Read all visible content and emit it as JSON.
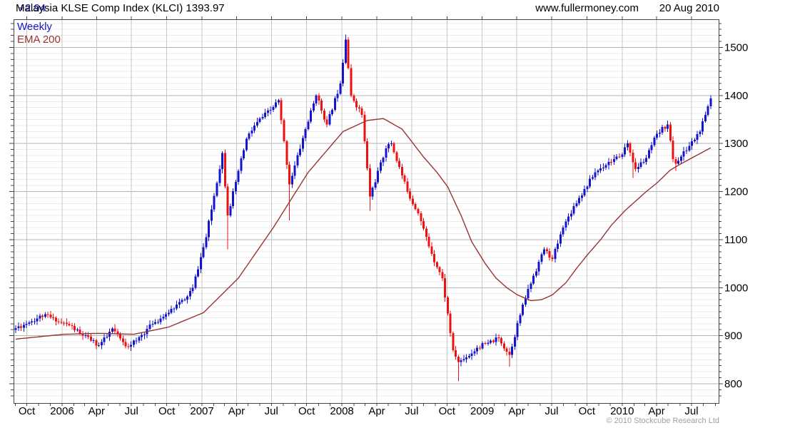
{
  "header": {
    "title": "Malaysia KLSE Comp Index (KLCI) 1393.97",
    "change": "+2.94",
    "site": "www.fullermoney.com",
    "date": "20 Aug 2010"
  },
  "legend": {
    "series": "Weekly",
    "ema": "EMA 200"
  },
  "footer": {
    "copyright": "© 2010 Stockcube Research Ltd"
  },
  "colors": {
    "up_candle": "#1414cd",
    "down_candle": "#ee1111",
    "ema_line": "#993333",
    "change_text": "#1414cd",
    "legend_series_text": "#1414cd",
    "legend_ema_text": "#993333",
    "title_text": "#000000",
    "axis_text": "#000000",
    "copyright_text": "#a0a0a0",
    "grid_minor": "#ebebeb",
    "grid_major": "#b3b3b3",
    "grid_vertical": "#c6c6c6",
    "border": "#444444",
    "background": "#ffffff"
  },
  "chart_data": {
    "type": "candlestick",
    "title": "Malaysia KLSE Comp Index (KLCI)",
    "interval": "weekly",
    "last_close": 1393.97,
    "last_change": 2.94,
    "legend": [
      "Weekly",
      "EMA 200"
    ],
    "start_date": "2005-09-02",
    "weeks": 260,
    "ylim": [
      763,
      1558
    ],
    "y_major_ticks": [
      800,
      900,
      1000,
      1100,
      1200,
      1300,
      1400,
      1500
    ],
    "y_minor_step": 12.5,
    "grid": true,
    "x_axis": [
      {
        "label": "Oct",
        "date": "2005-10-01"
      },
      {
        "label": "2006",
        "date": "2006-01-01"
      },
      {
        "label": "Apr",
        "date": "2006-04-01"
      },
      {
        "label": "Jul",
        "date": "2006-07-01"
      },
      {
        "label": "Oct",
        "date": "2006-10-01"
      },
      {
        "label": "2007",
        "date": "2007-01-01"
      },
      {
        "label": "Apr",
        "date": "2007-04-01"
      },
      {
        "label": "Jul",
        "date": "2007-07-01"
      },
      {
        "label": "Oct",
        "date": "2007-10-01"
      },
      {
        "label": "2008",
        "date": "2008-01-01"
      },
      {
        "label": "Apr",
        "date": "2008-04-01"
      },
      {
        "label": "Jul",
        "date": "2008-07-01"
      },
      {
        "label": "Oct",
        "date": "2008-10-01"
      },
      {
        "label": "2009",
        "date": "2009-01-01"
      },
      {
        "label": "Apr",
        "date": "2009-04-01"
      },
      {
        "label": "Jul",
        "date": "2009-07-01"
      },
      {
        "label": "Oct",
        "date": "2009-10-01"
      },
      {
        "label": "2010",
        "date": "2010-01-01"
      },
      {
        "label": "Apr",
        "date": "2010-04-01"
      },
      {
        "label": "Jul",
        "date": "2010-07-01"
      }
    ],
    "close_anchors": [
      [
        0,
        916
      ],
      [
        5,
        928
      ],
      [
        11,
        945
      ],
      [
        15,
        930
      ],
      [
        20,
        922
      ],
      [
        24,
        905
      ],
      [
        28,
        890
      ],
      [
        31,
        880
      ],
      [
        34,
        898
      ],
      [
        36,
        915
      ],
      [
        41,
        878
      ],
      [
        45,
        890
      ],
      [
        51,
        925
      ],
      [
        56,
        945
      ],
      [
        60,
        965
      ],
      [
        63,
        975
      ],
      [
        66,
        1000
      ],
      [
        71,
        1105
      ],
      [
        77,
        1280
      ],
      [
        79,
        1150
      ],
      [
        82,
        1220
      ],
      [
        86,
        1310
      ],
      [
        90,
        1345
      ],
      [
        95,
        1370
      ],
      [
        98,
        1390
      ],
      [
        102,
        1215
      ],
      [
        108,
        1330
      ],
      [
        112,
        1400
      ],
      [
        116,
        1340
      ],
      [
        121,
        1425
      ],
      [
        123,
        1516
      ],
      [
        125,
        1400
      ],
      [
        129,
        1360
      ],
      [
        132,
        1190
      ],
      [
        138,
        1290
      ],
      [
        140,
        1300
      ],
      [
        146,
        1200
      ],
      [
        150,
        1155
      ],
      [
        155,
        1070
      ],
      [
        159,
        1020
      ],
      [
        163,
        870
      ],
      [
        165,
        845
      ],
      [
        168,
        855
      ],
      [
        172,
        875
      ],
      [
        176,
        885
      ],
      [
        180,
        895
      ],
      [
        184,
        860
      ],
      [
        189,
        965
      ],
      [
        193,
        1025
      ],
      [
        197,
        1080
      ],
      [
        200,
        1060
      ],
      [
        204,
        1125
      ],
      [
        208,
        1170
      ],
      [
        212,
        1205
      ],
      [
        216,
        1240
      ],
      [
        221,
        1262
      ],
      [
        225,
        1272
      ],
      [
        228,
        1300
      ],
      [
        231,
        1247
      ],
      [
        235,
        1270
      ],
      [
        239,
        1320
      ],
      [
        243,
        1340
      ],
      [
        245,
        1268
      ],
      [
        246,
        1258
      ],
      [
        251,
        1295
      ],
      [
        255,
        1325
      ],
      [
        257,
        1360
      ],
      [
        259,
        1394
      ]
    ],
    "ema_anchors": [
      [
        0,
        893
      ],
      [
        18,
        903
      ],
      [
        31,
        905
      ],
      [
        44,
        903
      ],
      [
        57,
        918
      ],
      [
        70,
        948
      ],
      [
        83,
        1020
      ],
      [
        96,
        1125
      ],
      [
        109,
        1240
      ],
      [
        122,
        1325
      ],
      [
        131,
        1348
      ],
      [
        137,
        1352
      ],
      [
        144,
        1330
      ],
      [
        152,
        1272
      ],
      [
        157,
        1240
      ],
      [
        161,
        1210
      ],
      [
        166,
        1150
      ],
      [
        170,
        1095
      ],
      [
        175,
        1050
      ],
      [
        179,
        1020
      ],
      [
        183,
        1000
      ],
      [
        187,
        985
      ],
      [
        192,
        973
      ],
      [
        196,
        975
      ],
      [
        200,
        985
      ],
      [
        205,
        1010
      ],
      [
        209,
        1040
      ],
      [
        213,
        1068
      ],
      [
        218,
        1100
      ],
      [
        222,
        1130
      ],
      [
        227,
        1160
      ],
      [
        231,
        1180
      ],
      [
        235,
        1200
      ],
      [
        239,
        1218
      ],
      [
        244,
        1245
      ],
      [
        248,
        1258
      ],
      [
        252,
        1270
      ],
      [
        259,
        1291
      ]
    ],
    "wick_overrides": {
      "79": {
        "low": 1080
      },
      "102": {
        "low": 1140
      },
      "123": {
        "high": 1527
      },
      "132": {
        "low": 1160
      },
      "165": {
        "low": 805
      },
      "184": {
        "low": 836
      },
      "230": {
        "low": 1228
      },
      "246": {
        "low": 1243
      }
    },
    "render": {
      "seed": 11,
      "close_jitter": 5,
      "wick_base": 2.5,
      "wick_rand": 6.5
    }
  }
}
